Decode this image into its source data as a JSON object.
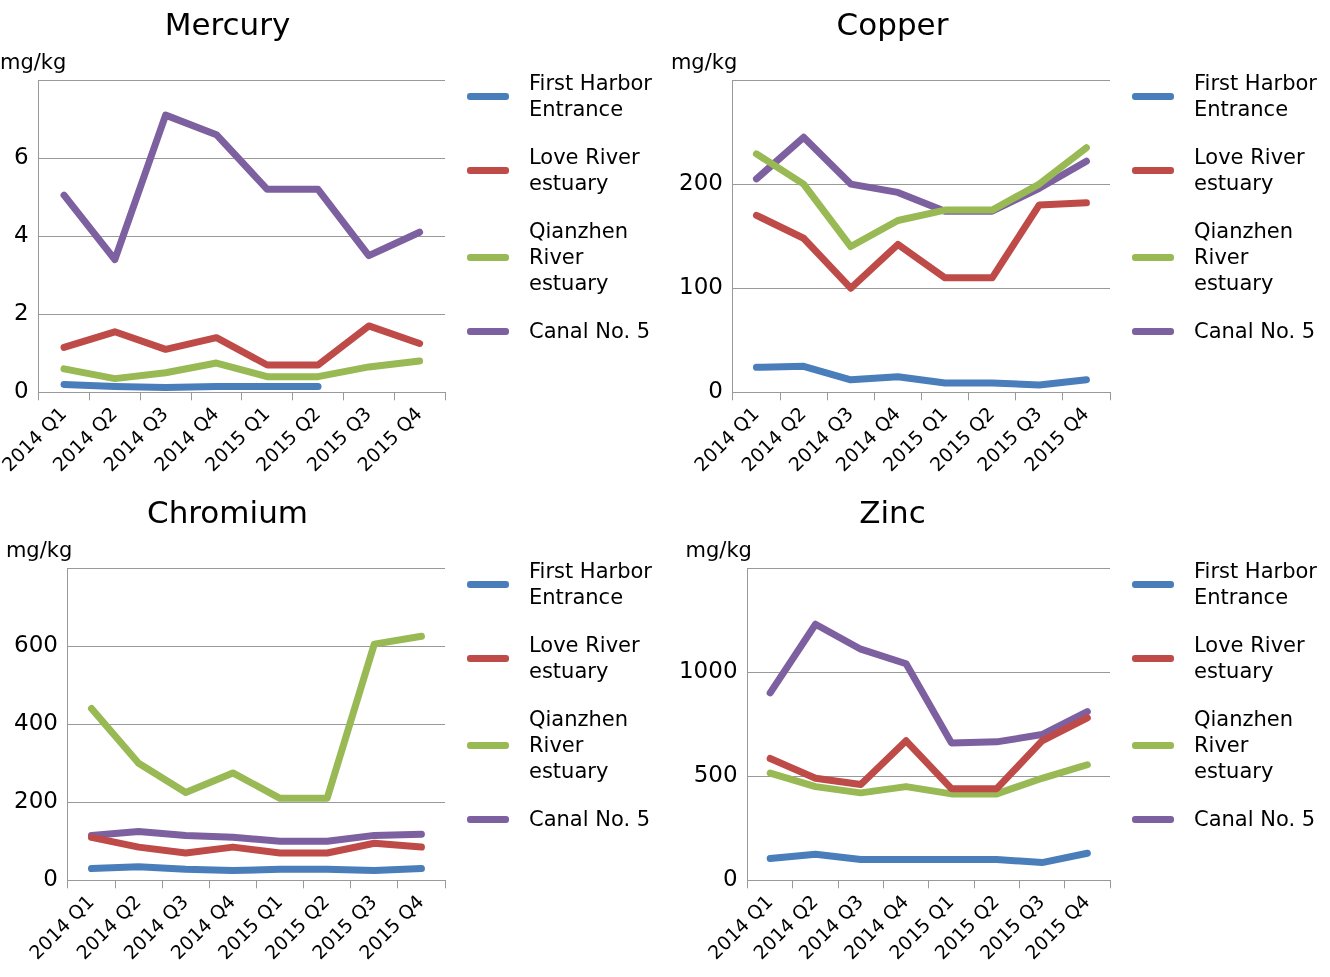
{
  "chart_data": [
    {
      "type": "line",
      "title": "Mercury",
      "ylabel": "mg/kg",
      "categories": [
        "2014 Q1",
        "2014 Q2",
        "2014 Q3",
        "2014 Q4",
        "2015 Q1",
        "2015 Q2",
        "2015 Q3",
        "2015 Q4"
      ],
      "series": [
        {
          "name": "First Harbor Entrance",
          "color": "#4a7ebb",
          "values": [
            0.2,
            0.15,
            0.12,
            0.15,
            0.15,
            0.15,
            null,
            null
          ]
        },
        {
          "name": "Love River estuary",
          "color": "#be4b48",
          "values": [
            1.15,
            1.55,
            1.1,
            1.4,
            0.7,
            0.7,
            1.7,
            1.25
          ]
        },
        {
          "name": "Qianzhen River estuary",
          "color": "#98b954",
          "values": [
            0.6,
            0.35,
            0.5,
            0.75,
            0.4,
            0.4,
            0.65,
            0.8
          ]
        },
        {
          "name": "Canal No. 5",
          "color": "#7d60a0",
          "values": [
            5.05,
            3.4,
            7.1,
            6.6,
            5.2,
            5.2,
            3.5,
            4.1
          ]
        }
      ],
      "ylim": [
        0,
        8
      ],
      "yticks": [
        0,
        2,
        4,
        6,
        {
          "value": 8,
          "label": null
        }
      ],
      "grid": "y",
      "legend": "right",
      "marker": "none"
    },
    {
      "type": "line",
      "title": "Copper",
      "ylabel": "mg/kg",
      "categories": [
        "2014 Q1",
        "2014 Q2",
        "2014 Q3",
        "2014 Q4",
        "2015 Q1",
        "2015 Q2",
        "2015 Q3",
        "2015 Q4"
      ],
      "series": [
        {
          "name": "First Harbor Entrance",
          "color": "#4a7ebb",
          "values": [
            24,
            25,
            12,
            15,
            9,
            9,
            7,
            12
          ]
        },
        {
          "name": "Love River estuary",
          "color": "#be4b48",
          "values": [
            170,
            148,
            100,
            142,
            110,
            110,
            180,
            182
          ]
        },
        {
          "name": "Qianzhen River estuary",
          "color": "#98b954",
          "values": [
            229,
            200,
            140,
            165,
            175,
            175,
            200,
            235
          ]
        },
        {
          "name": "Canal No. 5",
          "color": "#7d60a0",
          "values": [
            205,
            245,
            200,
            192,
            174,
            174,
            196,
            222
          ]
        }
      ],
      "ylim": [
        0,
        300
      ],
      "yticks": [
        0,
        100,
        200,
        {
          "value": 300,
          "label": null
        }
      ],
      "grid": "y",
      "legend": "right",
      "marker": "none"
    },
    {
      "type": "line",
      "title": "Chromium",
      "ylabel": "mg/kg",
      "categories": [
        "2014 Q1",
        "2014 Q2",
        "2014 Q3",
        "2014 Q4",
        "2015 Q1",
        "2015 Q2",
        "2015 Q3",
        "2015 Q4"
      ],
      "series": [
        {
          "name": "First Harbor Entrance",
          "color": "#4a7ebb",
          "values": [
            30,
            35,
            28,
            25,
            28,
            28,
            25,
            30
          ]
        },
        {
          "name": "Love River estuary",
          "color": "#be4b48",
          "values": [
            110,
            85,
            70,
            85,
            70,
            70,
            95,
            85
          ]
        },
        {
          "name": "Qianzhen River estuary",
          "color": "#98b954",
          "values": [
            440,
            300,
            225,
            275,
            210,
            210,
            605,
            625
          ]
        },
        {
          "name": "Canal No. 5",
          "color": "#7d60a0",
          "values": [
            115,
            125,
            115,
            110,
            100,
            100,
            115,
            118
          ]
        }
      ],
      "ylim": [
        0,
        800
      ],
      "yticks": [
        0,
        200,
        400,
        600,
        {
          "value": 800,
          "label": null
        }
      ],
      "grid": "y",
      "legend": "right",
      "marker": "none"
    },
    {
      "type": "line",
      "title": "Zinc",
      "ylabel": "mg/kg",
      "categories": [
        "2014 Q1",
        "2014 Q2",
        "2014 Q3",
        "2014 Q4",
        "2015 Q1",
        "2015 Q2",
        "2015 Q3",
        "2015 Q4"
      ],
      "series": [
        {
          "name": "First Harbor Entrance",
          "color": "#4a7ebb",
          "values": [
            105,
            125,
            100,
            100,
            100,
            100,
            85,
            130
          ]
        },
        {
          "name": "Love River estuary",
          "color": "#be4b48",
          "values": [
            585,
            490,
            460,
            670,
            440,
            440,
            670,
            780
          ]
        },
        {
          "name": "Qianzhen River estuary",
          "color": "#98b954",
          "values": [
            515,
            450,
            420,
            450,
            415,
            415,
            490,
            555
          ]
        },
        {
          "name": "Canal No. 5",
          "color": "#7d60a0",
          "values": [
            900,
            1230,
            1110,
            1040,
            660,
            665,
            700,
            810
          ]
        }
      ],
      "ylim": [
        0,
        1500
      ],
      "yticks": [
        0,
        500,
        1000,
        {
          "value": 1500,
          "label": null
        }
      ],
      "grid": "y",
      "legend": "right",
      "marker": "none"
    }
  ]
}
